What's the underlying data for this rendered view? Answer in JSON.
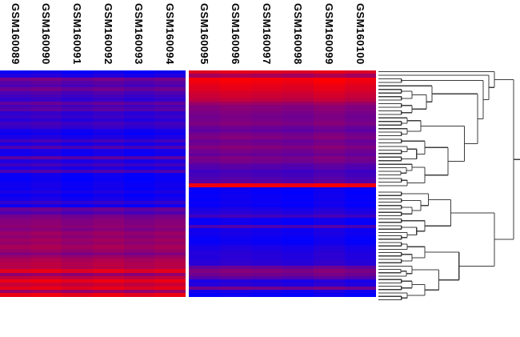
{
  "figure": {
    "background": "#ffffff",
    "description": "Hierarchical clustering heatmap with column sample labels and row dendrogram"
  },
  "chart_data": {
    "type": "heatmap",
    "title": "",
    "xlabel": "",
    "ylabel": "",
    "columns": [
      "GSM160089",
      "GSM160090",
      "GSM160091",
      "GSM160092",
      "GSM160093",
      "GSM160094",
      "GSM160095",
      "GSM160096",
      "GSM160097",
      "GSM160098",
      "GSM160099",
      "GSM160100"
    ],
    "column_groups": [
      {
        "name": "left-block",
        "column_indexes": [
          0,
          1,
          2,
          3,
          4,
          5
        ]
      },
      {
        "name": "right-block",
        "column_indexes": [
          6,
          7,
          8,
          9,
          10,
          11
        ]
      }
    ],
    "legend_position": "none",
    "grid": false,
    "color_low": "#0000ff",
    "color_high": "#ff0000",
    "value_range": [
      0,
      1
    ],
    "rows": [
      [
        0.04,
        0.88
      ],
      [
        0.12,
        0.65
      ],
      [
        0.45,
        0.97
      ],
      [
        0.35,
        0.95
      ],
      [
        0.3,
        0.9
      ],
      [
        0.42,
        0.88
      ],
      [
        0.3,
        0.82
      ],
      [
        0.25,
        0.8
      ],
      [
        0.2,
        0.75
      ],
      [
        0.38,
        0.62
      ],
      [
        0.28,
        0.52
      ],
      [
        0.35,
        0.52
      ],
      [
        0.18,
        0.48
      ],
      [
        0.22,
        0.45
      ],
      [
        0.15,
        0.47
      ],
      [
        0.25,
        0.5
      ],
      [
        0.2,
        0.42
      ],
      [
        0.08,
        0.38
      ],
      [
        0.05,
        0.45
      ],
      [
        0.1,
        0.5
      ],
      [
        0.25,
        0.42
      ],
      [
        0.1,
        0.45
      ],
      [
        0.3,
        0.52
      ],
      [
        0.08,
        0.45
      ],
      [
        0.06,
        0.4
      ],
      [
        0.35,
        0.48
      ],
      [
        0.12,
        0.45
      ],
      [
        0.25,
        0.35
      ],
      [
        0.1,
        0.32
      ],
      [
        0.3,
        0.25
      ],
      [
        0.04,
        0.28
      ],
      [
        0.02,
        0.32
      ],
      [
        0.04,
        0.35
      ],
      [
        0.06,
        0.95
      ],
      [
        0.05,
        0.03
      ],
      [
        0.1,
        0.02
      ],
      [
        0.03,
        0.04
      ],
      [
        0.08,
        0.03
      ],
      [
        0.2,
        0.05
      ],
      [
        0.05,
        0.03
      ],
      [
        0.4,
        0.1
      ],
      [
        0.3,
        0.15
      ],
      [
        0.45,
        0.25
      ],
      [
        0.5,
        0.05
      ],
      [
        0.52,
        0.04
      ],
      [
        0.55,
        0.3
      ],
      [
        0.5,
        0.06
      ],
      [
        0.6,
        0.08
      ],
      [
        0.55,
        0.05
      ],
      [
        0.62,
        0.03
      ],
      [
        0.58,
        0.04
      ],
      [
        0.65,
        0.1
      ],
      [
        0.6,
        0.12
      ],
      [
        0.5,
        0.15
      ],
      [
        0.6,
        0.14
      ],
      [
        0.68,
        0.16
      ],
      [
        0.72,
        0.18
      ],
      [
        0.7,
        0.4
      ],
      [
        0.88,
        0.5
      ],
      [
        0.56,
        0.45
      ],
      [
        0.75,
        0.35
      ],
      [
        0.92,
        0.12
      ],
      [
        0.78,
        0.15
      ],
      [
        0.9,
        0.45
      ],
      [
        0.6,
        0.08
      ],
      [
        0.92,
        0.02
      ]
    ],
    "column_delta": [
      0.0,
      0.03,
      -0.02,
      0.02,
      -0.03,
      0.01,
      -0.01,
      0.02,
      0.0,
      -0.02,
      0.03,
      -0.02
    ],
    "dendrogram": {
      "orientation": "right",
      "line_color": "#3d3d3d",
      "clusters": [
        {
          "leaves": 33,
          "splits": [
            0.03,
            0.03,
            0.06,
            0.5,
            0.3,
            0.12,
            0.55,
            0.4,
            0.5,
            0.25,
            0.6,
            0.35,
            0.45,
            0.3,
            0.5,
            0.42
          ]
        },
        {
          "leaves": 33,
          "splits": [
            0.45,
            0.5,
            0.3,
            0.55,
            0.25,
            0.5,
            0.4,
            0.12,
            0.5,
            0.35,
            0.6,
            0.45,
            0.5,
            0.3,
            0.48,
            0.4
          ]
        }
      ]
    }
  }
}
